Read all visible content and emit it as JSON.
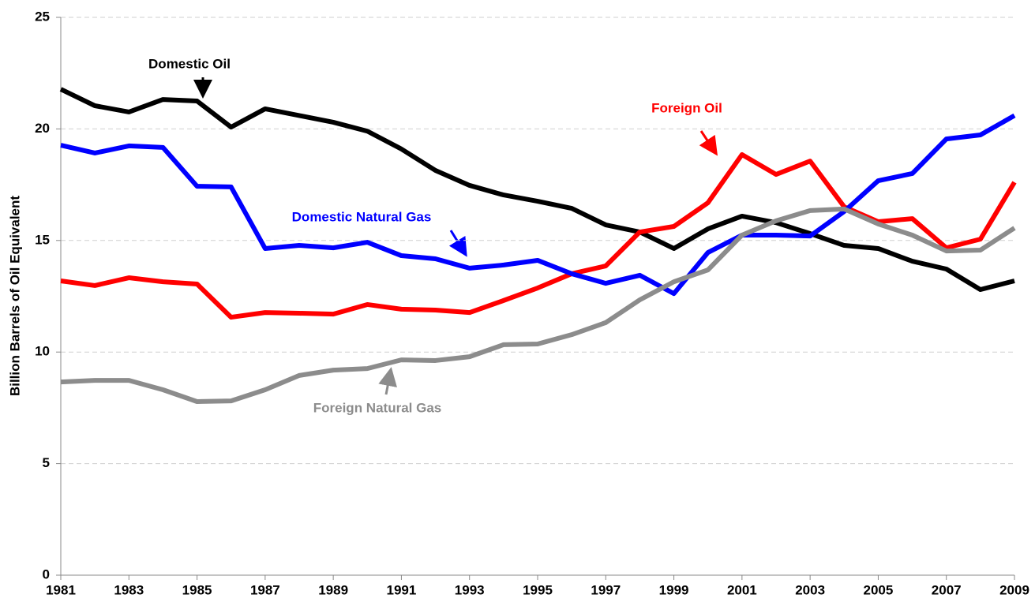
{
  "chart_data": {
    "type": "line",
    "y_label": "Billion Barrels of Oil Equivalent",
    "x": [
      1981,
      1982,
      1983,
      1984,
      1985,
      1986,
      1987,
      1988,
      1989,
      1990,
      1991,
      1992,
      1993,
      1994,
      1995,
      1996,
      1997,
      1998,
      1999,
      2000,
      2001,
      2002,
      2003,
      2004,
      2005,
      2006,
      2007,
      2008,
      2009
    ],
    "xlim": [
      1981,
      2009
    ],
    "xticks": [
      1981,
      1983,
      1985,
      1987,
      1989,
      1991,
      1993,
      1995,
      1997,
      1999,
      2001,
      2003,
      2005,
      2007,
      2009
    ],
    "ylim": [
      0,
      25
    ],
    "yticks": [
      0,
      5,
      10,
      15,
      20,
      25
    ],
    "grid": true,
    "series": [
      {
        "name": "Domestic Oil",
        "color": "#000000",
        "values": [
          21.78,
          21.04,
          20.76,
          21.32,
          21.25,
          20.08,
          20.9,
          20.6,
          20.3,
          19.9,
          19.1,
          18.14,
          17.47,
          17.04,
          16.76,
          16.44,
          15.7,
          15.38,
          14.64,
          15.52,
          16.09,
          15.8,
          15.31,
          14.78,
          14.64,
          14.07,
          13.72,
          12.8,
          13.19
        ]
      },
      {
        "name": "Foreign Oil",
        "color": "#ff0000",
        "values": [
          13.19,
          12.98,
          13.33,
          13.15,
          13.05,
          11.56,
          11.77,
          11.74,
          11.7,
          12.13,
          11.92,
          11.88,
          11.77,
          12.31,
          12.87,
          13.51,
          13.86,
          15.38,
          15.63,
          16.69,
          18.85,
          17.96,
          18.56,
          16.51,
          15.84,
          15.98,
          14.67,
          15.06,
          17.61
        ]
      },
      {
        "name": "Domestic Natural Gas",
        "color": "#0000ff",
        "values": [
          19.27,
          18.92,
          19.24,
          19.17,
          17.43,
          17.4,
          14.64,
          14.78,
          14.67,
          14.92,
          14.32,
          14.18,
          13.76,
          13.9,
          14.11,
          13.51,
          13.08,
          13.44,
          12.62,
          14.46,
          15.24,
          15.24,
          15.2,
          16.3,
          17.68,
          18.0,
          19.55,
          19.73,
          20.6
        ]
      },
      {
        "name": "Foreign Natural Gas",
        "color": "#8c8c8c",
        "values": [
          8.66,
          8.73,
          8.73,
          8.31,
          7.78,
          7.81,
          8.31,
          8.95,
          9.19,
          9.26,
          9.65,
          9.62,
          9.79,
          10.33,
          10.36,
          10.78,
          11.32,
          12.34,
          13.15,
          13.68,
          15.24,
          15.88,
          16.34,
          16.41,
          15.74,
          15.24,
          14.53,
          14.57,
          15.56
        ]
      }
    ]
  }
}
